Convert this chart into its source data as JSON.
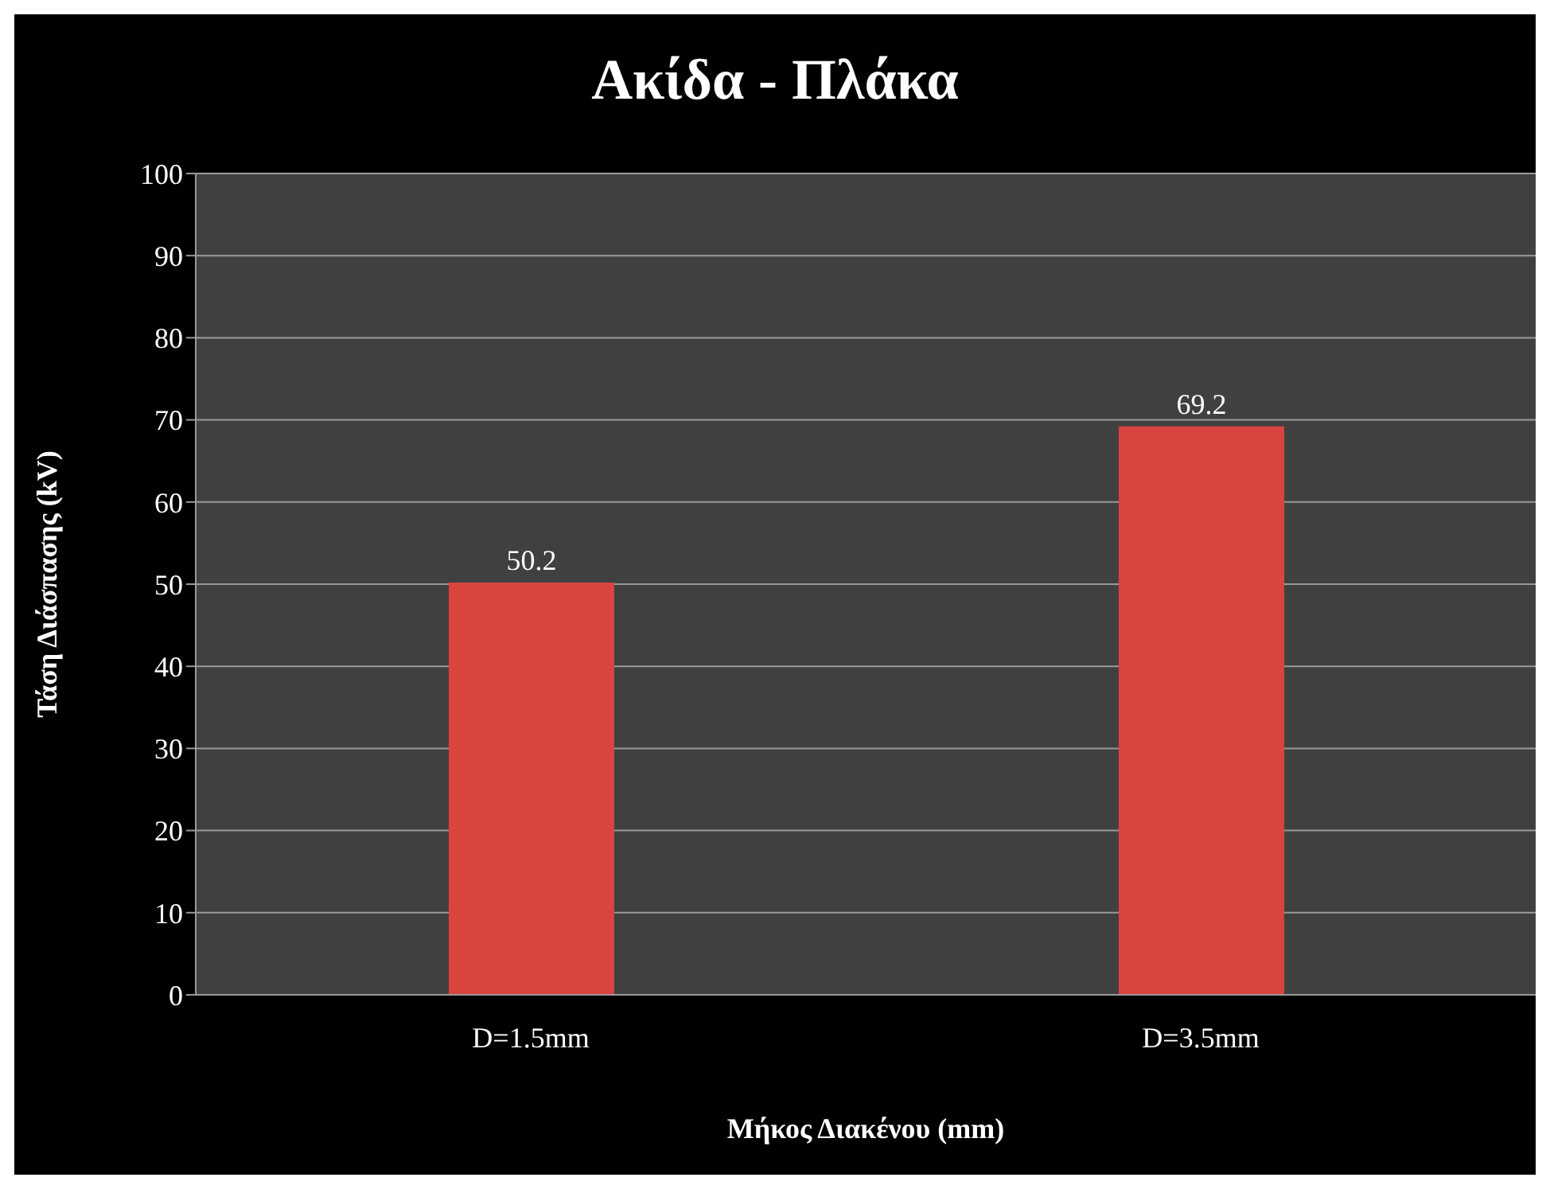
{
  "chart_data": {
    "type": "bar",
    "title": "Ακίδα - Πλάκα",
    "xlabel": "Μήκος Διακένου (mm)",
    "ylabel": "Τάση Διάσπασης   (kV)",
    "categories": [
      "D=1.5mm",
      "D=3.5mm"
    ],
    "series": [
      {
        "color": "#d9443f",
        "values": [
          50.2,
          69.2
        ]
      }
    ],
    "ylim": [
      0,
      100
    ],
    "yticks": [
      0,
      10,
      20,
      30,
      40,
      50,
      60,
      70,
      80,
      90,
      100
    ],
    "grid": "y",
    "data_labels": true,
    "legend": false
  }
}
